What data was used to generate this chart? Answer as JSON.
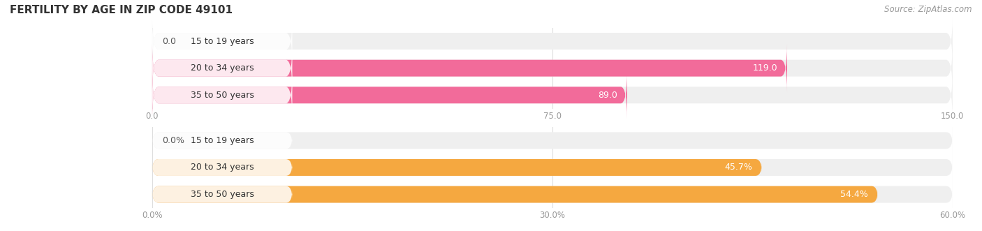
{
  "title": "FERTILITY BY AGE IN ZIP CODE 49101",
  "source": "Source: ZipAtlas.com",
  "chart1": {
    "categories": [
      "15 to 19 years",
      "20 to 34 years",
      "35 to 50 years"
    ],
    "values": [
      0.0,
      119.0,
      89.0
    ],
    "xlim": [
      0,
      150.0
    ],
    "xticks": [
      0.0,
      75.0,
      150.0
    ],
    "bar_color": "#F26B9A",
    "bar_bg_color": "#EFEFEF",
    "value_labels": [
      "0.0",
      "119.0",
      "89.0"
    ],
    "has_percent": false
  },
  "chart2": {
    "categories": [
      "15 to 19 years",
      "20 to 34 years",
      "35 to 50 years"
    ],
    "values": [
      0.0,
      45.7,
      54.4
    ],
    "xlim": [
      0,
      60.0
    ],
    "xticks": [
      0.0,
      30.0,
      60.0
    ],
    "bar_color": "#F5A840",
    "bar_bg_color": "#EFEFEF",
    "value_labels": [
      "0.0%",
      "45.7%",
      "54.4%"
    ],
    "has_percent": true
  },
  "bg_color": "#ffffff",
  "title_fontsize": 11,
  "label_fontsize": 9,
  "tick_fontsize": 8.5,
  "source_fontsize": 8.5,
  "bar_height": 0.62,
  "tag_color1": "#F26B9A",
  "tag_color2": "#F5A840",
  "tag_text_color": "#333333",
  "inside_label_color": "#ffffff",
  "outside_label_color": "#555555"
}
